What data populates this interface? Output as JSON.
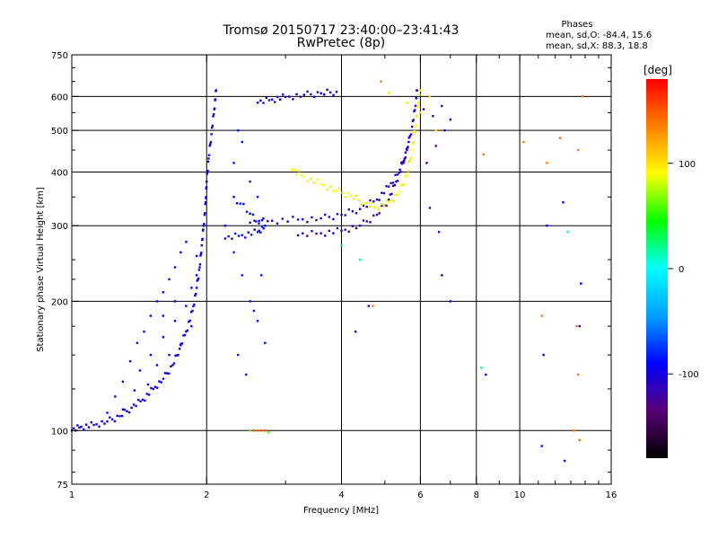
{
  "chart_data": {
    "type": "scatter",
    "title": "Tromsø 20150717 23:40:00–23:41:43",
    "subtitle": "RwPretec (8p)",
    "phases": {
      "heading": "Phases",
      "line_o": "mean, sd,O: -84.4, 15.6",
      "line_x": "mean, sd,X:  88.3, 18.8"
    },
    "xlabel": "Frequency [MHz]",
    "ylabel": "Stationary phase Virtual Height [km]",
    "xscale": "log",
    "yscale": "log",
    "xlim": [
      1,
      16
    ],
    "ylim": [
      75,
      750
    ],
    "xticks": [
      1,
      2,
      4,
      6,
      8,
      10,
      16
    ],
    "xtick_labels": [
      "1",
      "2",
      "4",
      "6",
      "8",
      "10",
      "16"
    ],
    "yticks": [
      75,
      100,
      200,
      300,
      400,
      500,
      600,
      750
    ],
    "ytick_labels": [
      "75",
      "100",
      "200",
      "300",
      "400",
      "500",
      "600",
      "750"
    ],
    "grid_x": [
      2,
      4,
      6,
      8,
      10
    ],
    "grid_y": [
      100,
      200,
      300,
      400,
      500,
      600
    ],
    "colorbar": {
      "label": "[deg]",
      "range": [
        -180,
        180
      ],
      "ticks": [
        100,
        0,
        -100
      ],
      "tick_labels": [
        "100",
        "0",
        "-100"
      ],
      "colors": [
        "#000000",
        "#5a0078",
        "#0000ff",
        "#00a0ff",
        "#00ffff",
        "#00ff00",
        "#ffff00",
        "#ff8000",
        "#ff0000"
      ]
    },
    "traces": [
      {
        "name": "",
        "phase": -100,
        "points": [
          [
            1.0,
            100
          ],
          [
            1.05,
            102
          ],
          [
            1.12,
            103
          ],
          [
            1.2,
            105
          ],
          [
            1.28,
            108
          ],
          [
            1.36,
            113
          ],
          [
            1.44,
            118
          ],
          [
            1.52,
            125
          ],
          [
            1.6,
            132
          ],
          [
            1.68,
            142
          ],
          [
            1.74,
            155
          ],
          [
            1.8,
            170
          ],
          [
            1.86,
            190
          ],
          [
            1.9,
            215
          ],
          [
            1.93,
            240
          ],
          [
            1.95,
            270
          ],
          [
            1.97,
            300
          ],
          [
            1.99,
            340
          ],
          [
            2.0,
            380
          ],
          [
            2.02,
            430
          ],
          [
            2.05,
            490
          ],
          [
            2.08,
            560
          ],
          [
            2.1,
            620
          ]
        ]
      },
      {
        "name": "",
        "phase": -110,
        "points": [
          [
            2.5,
            305
          ],
          [
            2.8,
            308
          ],
          [
            3.2,
            310
          ],
          [
            3.6,
            312
          ],
          [
            4.0,
            318
          ],
          [
            4.4,
            328
          ],
          [
            4.8,
            345
          ],
          [
            5.1,
            370
          ],
          [
            5.4,
            405
          ],
          [
            5.6,
            450
          ],
          [
            5.75,
            510
          ],
          [
            5.85,
            570
          ],
          [
            5.9,
            620
          ]
        ]
      },
      {
        "name": "",
        "phase": -115,
        "points": [
          [
            3.2,
            285
          ],
          [
            3.6,
            288
          ],
          [
            4.0,
            292
          ],
          [
            4.4,
            300
          ],
          [
            4.8,
            318
          ],
          [
            5.1,
            345
          ],
          [
            5.3,
            380
          ],
          [
            5.5,
            420
          ],
          [
            5.65,
            470
          ]
        ]
      },
      {
        "name": "",
        "phase": 90,
        "points": [
          [
            3.1,
            405
          ],
          [
            3.3,
            390
          ],
          [
            3.6,
            375
          ],
          [
            3.9,
            362
          ],
          [
            4.2,
            352
          ],
          [
            4.5,
            338
          ],
          [
            4.8,
            330
          ],
          [
            5.1,
            340
          ],
          [
            5.4,
            360
          ],
          [
            5.6,
            395
          ],
          [
            5.75,
            450
          ],
          [
            5.85,
            510
          ],
          [
            5.92,
            570
          ],
          [
            5.98,
            620
          ]
        ]
      },
      {
        "name": "",
        "phase": -100,
        "points": [
          [
            2.6,
            580
          ],
          [
            2.8,
            590
          ],
          [
            3.0,
            598
          ],
          [
            3.3,
            605
          ],
          [
            3.6,
            610
          ],
          [
            3.9,
            615
          ]
        ]
      },
      {
        "name": "",
        "phase": -90,
        "points": [
          [
            2.2,
            280
          ],
          [
            2.4,
            285
          ],
          [
            2.6,
            290
          ],
          [
            2.7,
            300
          ],
          [
            2.5,
            320
          ],
          [
            2.3,
            350
          ]
        ]
      }
    ],
    "scatter": [
      {
        "name": "",
        "phase": -95,
        "points": [
          [
            1.35,
            145
          ],
          [
            1.4,
            160
          ],
          [
            1.45,
            170
          ],
          [
            1.5,
            185
          ],
          [
            1.55,
            200
          ],
          [
            1.6,
            210
          ],
          [
            1.65,
            225
          ],
          [
            1.7,
            240
          ],
          [
            1.75,
            260
          ],
          [
            1.8,
            275
          ],
          [
            1.5,
            150
          ],
          [
            1.6,
            165
          ],
          [
            1.7,
            180
          ],
          [
            1.8,
            195
          ],
          [
            1.9,
            230
          ],
          [
            1.3,
            130
          ],
          [
            1.42,
            138
          ],
          [
            1.55,
            142
          ],
          [
            1.65,
            150
          ],
          [
            1.75,
            158
          ],
          [
            1.85,
            175
          ],
          [
            1.25,
            120
          ],
          [
            1.7,
            200
          ],
          [
            1.85,
            215
          ],
          [
            1.9,
            255
          ],
          [
            1.6,
            185
          ],
          [
            1.48,
            128
          ],
          [
            1.38,
            124
          ],
          [
            1.3,
            112
          ],
          [
            1.2,
            110
          ]
        ]
      },
      {
        "name": "",
        "phase": -85,
        "points": [
          [
            2.3,
            420
          ],
          [
            2.35,
            500
          ],
          [
            2.4,
            470
          ],
          [
            2.5,
            380
          ],
          [
            2.6,
            350
          ],
          [
            2.2,
            300
          ],
          [
            2.3,
            260
          ],
          [
            2.4,
            230
          ],
          [
            2.5,
            200
          ],
          [
            2.6,
            180
          ],
          [
            2.7,
            160
          ],
          [
            2.35,
            150
          ],
          [
            2.45,
            135
          ],
          [
            2.55,
            190
          ],
          [
            2.65,
            230
          ]
        ]
      },
      {
        "name": "",
        "phase": 150,
        "points": [
          [
            2.55,
            100
          ],
          [
            2.6,
            100
          ],
          [
            2.65,
            100
          ],
          [
            2.7,
            100
          ]
        ]
      },
      {
        "name": "",
        "phase": 60,
        "points": [
          [
            2.5,
            100
          ],
          [
            2.75,
            99
          ]
        ]
      },
      {
        "name": "",
        "phase": -120,
        "points": [
          [
            6.1,
            560
          ],
          [
            6.4,
            540
          ],
          [
            6.7,
            570
          ],
          [
            7.0,
            530
          ],
          [
            6.5,
            460
          ],
          [
            6.2,
            420
          ],
          [
            6.8,
            500
          ],
          [
            6.3,
            330
          ],
          [
            6.6,
            290
          ]
        ]
      },
      {
        "name": "",
        "phase": 100,
        "points": [
          [
            5.1,
            610
          ],
          [
            5.6,
            580
          ],
          [
            6.0,
            550
          ],
          [
            6.3,
            600
          ],
          [
            6.5,
            500
          ]
        ]
      },
      {
        "name": "",
        "phase": 140,
        "points": [
          [
            8.3,
            440
          ],
          [
            10.2,
            470
          ],
          [
            11.5,
            420
          ],
          [
            12.3,
            480
          ],
          [
            13.5,
            450
          ],
          [
            13.8,
            600
          ],
          [
            13.2,
            100
          ],
          [
            13.6,
            95
          ],
          [
            11.2,
            185
          ],
          [
            13.4,
            175
          ],
          [
            13.5,
            135
          ],
          [
            4.7,
            195
          ],
          [
            4.9,
            650
          ]
        ]
      },
      {
        "name": "",
        "phase": -100,
        "points": [
          [
            11.3,
            150
          ],
          [
            11.5,
            300
          ],
          [
            12.5,
            340
          ],
          [
            13.7,
            220
          ],
          [
            13.6,
            175
          ],
          [
            11.2,
            92
          ],
          [
            12.6,
            85
          ],
          [
            8.4,
            135
          ],
          [
            4.3,
            170
          ],
          [
            4.6,
            195
          ],
          [
            6.7,
            230
          ],
          [
            7.0,
            200
          ]
        ]
      },
      {
        "name": "",
        "phase": 20,
        "points": [
          [
            8.2,
            140
          ],
          [
            4.4,
            250
          ],
          [
            4.0,
            270
          ],
          [
            12.8,
            290
          ]
        ]
      }
    ]
  }
}
